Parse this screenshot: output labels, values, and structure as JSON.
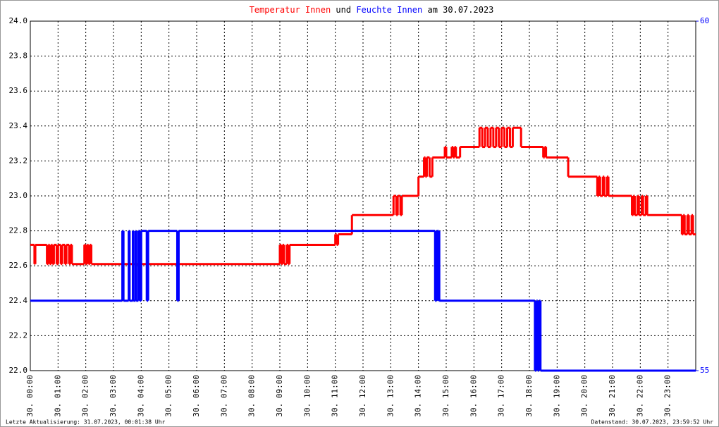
{
  "chart_data": {
    "type": "step",
    "title_join": "und",
    "title_date": "am 30.07.2023",
    "footer_left": "Letzte Aktualisierung: 31.07.2023, 00:01:38 Uhr",
    "footer_right": "Datenstand: 30.07.2023, 23:59:52 Uhr",
    "xlim": [
      0,
      24
    ],
    "xticks": [
      {
        "value": 0,
        "label": "30. 00:00"
      },
      {
        "value": 1,
        "label": "30. 01:00"
      },
      {
        "value": 2,
        "label": "30. 02:00"
      },
      {
        "value": 3,
        "label": "30. 03:00"
      },
      {
        "value": 4,
        "label": "30. 04:00"
      },
      {
        "value": 5,
        "label": "30. 05:00"
      },
      {
        "value": 6,
        "label": "30. 06:00"
      },
      {
        "value": 7,
        "label": "30. 07:00"
      },
      {
        "value": 8,
        "label": "30. 08:00"
      },
      {
        "value": 9,
        "label": "30. 09:00"
      },
      {
        "value": 10,
        "label": "30. 10:00"
      },
      {
        "value": 11,
        "label": "30. 11:00"
      },
      {
        "value": 12,
        "label": "30. 12:00"
      },
      {
        "value": 13,
        "label": "30. 13:00"
      },
      {
        "value": 14,
        "label": "30. 14:00"
      },
      {
        "value": 15,
        "label": "30. 15:00"
      },
      {
        "value": 16,
        "label": "30. 16:00"
      },
      {
        "value": 17,
        "label": "30. 17:00"
      },
      {
        "value": 18,
        "label": "30. 18:00"
      },
      {
        "value": 19,
        "label": "30. 19:00"
      },
      {
        "value": 20,
        "label": "30. 20:00"
      },
      {
        "value": 21,
        "label": "30. 21:00"
      },
      {
        "value": 22,
        "label": "30. 22:00"
      },
      {
        "value": 23,
        "label": "30. 23:00"
      }
    ],
    "ylim": [
      22.0,
      24.0
    ],
    "yticks": [
      {
        "value": 22,
        "label": "22.0"
      },
      22.2,
      22.4,
      22.6,
      22.8,
      {
        "value": 23,
        "label": "23.0"
      },
      23.2,
      23.4,
      23.6,
      23.8,
      {
        "value": 24,
        "label": "24.0"
      }
    ],
    "y2lim": [
      55,
      60
    ],
    "y2ticks": [
      55,
      60
    ],
    "y2color": "#0000ff",
    "grid": true,
    "series": [
      {
        "name": "Temperatur Innen",
        "color": "#ff0000",
        "x": [
          0,
          0.15,
          0.18,
          0.6,
          0.65,
          0.7,
          0.75,
          0.8,
          0.85,
          0.95,
          1.0,
          1.1,
          1.15,
          1.25,
          1.3,
          1.4,
          1.45,
          1.5,
          1.95,
          2.0,
          2.05,
          2.1,
          2.15,
          2.2,
          9.0,
          9.05,
          9.1,
          9.15,
          9.25,
          9.3,
          9.35,
          11.0,
          11.05,
          11.1,
          11.6,
          13.1,
          13.2,
          13.25,
          13.35,
          13.4,
          14.0,
          14.2,
          14.25,
          14.3,
          14.4,
          14.5,
          14.95,
          15.0,
          15.2,
          15.25,
          15.3,
          15.35,
          15.5,
          16.2,
          16.3,
          16.4,
          16.5,
          16.6,
          16.7,
          16.8,
          16.9,
          17.0,
          17.1,
          17.2,
          17.3,
          17.4,
          17.7,
          18.5,
          18.55,
          18.6,
          18.7,
          19.4,
          20.45,
          20.5,
          20.55,
          20.65,
          20.7,
          20.8,
          20.85,
          21.7,
          21.75,
          21.8,
          21.9,
          21.95,
          22.05,
          22.1,
          22.2,
          22.25,
          23.5,
          23.55,
          23.6,
          23.7,
          23.75,
          23.85,
          23.9
        ],
        "values": [
          22.72,
          22.61,
          22.72,
          22.61,
          22.72,
          22.61,
          22.72,
          22.61,
          22.72,
          22.61,
          22.72,
          22.61,
          22.72,
          22.61,
          22.72,
          22.61,
          22.72,
          22.61,
          22.72,
          22.61,
          22.72,
          22.61,
          22.72,
          22.61,
          22.72,
          22.61,
          22.72,
          22.61,
          22.72,
          22.61,
          22.72,
          22.78,
          22.72,
          22.78,
          22.89,
          23.0,
          22.89,
          23.0,
          22.89,
          23.0,
          23.11,
          23.22,
          23.11,
          23.22,
          23.11,
          23.22,
          23.28,
          23.22,
          23.28,
          23.22,
          23.28,
          23.22,
          23.28,
          23.39,
          23.28,
          23.39,
          23.28,
          23.39,
          23.28,
          23.39,
          23.28,
          23.39,
          23.28,
          23.39,
          23.28,
          23.39,
          23.28,
          23.22,
          23.28,
          23.22,
          23.22,
          23.11,
          23.0,
          23.11,
          23.0,
          23.11,
          23.0,
          23.11,
          23.0,
          22.89,
          23.0,
          22.89,
          23.0,
          22.89,
          23.0,
          22.89,
          23.0,
          22.89,
          22.78,
          22.89,
          22.78,
          22.89,
          22.78,
          22.89,
          22.78
        ]
      },
      {
        "name": "Feuchte Innen",
        "color": "#0000ff",
        "axis": "y2",
        "x": [
          0,
          3.32,
          3.36,
          3.55,
          3.58,
          3.7,
          3.72,
          3.8,
          3.82,
          3.9,
          3.95,
          4.0,
          4.2,
          4.25,
          5.3,
          5.35,
          14.6,
          14.65,
          14.7,
          14.72,
          14.75,
          18.2,
          18.25,
          18.3,
          18.35,
          18.4
        ],
        "values": [
          56,
          57,
          56,
          57,
          56,
          57,
          56,
          57,
          56,
          57,
          56,
          57,
          56,
          57,
          56,
          57,
          56,
          57,
          56,
          57,
          56,
          55,
          56,
          55,
          56,
          55
        ]
      }
    ]
  }
}
